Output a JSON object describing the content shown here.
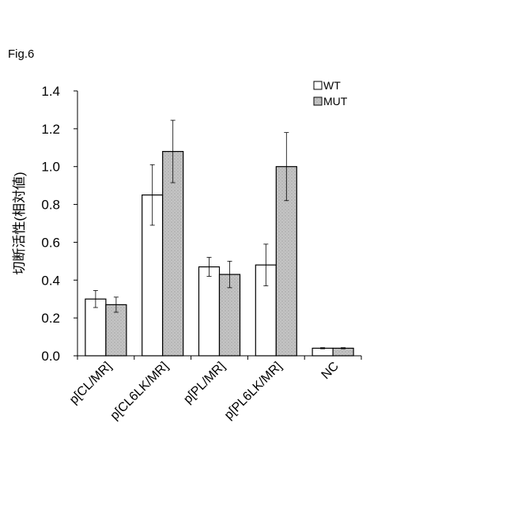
{
  "figure_label": "Fig.6",
  "colors": {
    "wt_fill": "#ffffff",
    "mut_fill": "#c4c4c4",
    "stroke": "#000000"
  },
  "chart_data": {
    "type": "bar",
    "title": "",
    "xlabel": "",
    "ylabel": "切断活性(相対値)",
    "ylim": [
      0,
      1.4
    ],
    "yticks": [
      "0.0",
      "0.2",
      "0.4",
      "0.6",
      "0.8",
      "1.0",
      "1.2",
      "1.4"
    ],
    "categories": [
      "p[CL/MR]",
      "p[CL6LK/MR]",
      "p[PL/MR]",
      "p[PL6LK/MR]",
      "NC"
    ],
    "series": [
      {
        "name": "WT",
        "values": [
          0.3,
          0.85,
          0.47,
          0.48,
          0.04
        ],
        "errors": [
          0.045,
          0.16,
          0.05,
          0.11,
          0.003
        ]
      },
      {
        "name": "MUT",
        "values": [
          0.27,
          1.08,
          0.43,
          1.0,
          0.04
        ],
        "errors": [
          0.04,
          0.165,
          0.07,
          0.18,
          0.003
        ]
      }
    ],
    "legend_position": "top-right",
    "grid": false
  }
}
